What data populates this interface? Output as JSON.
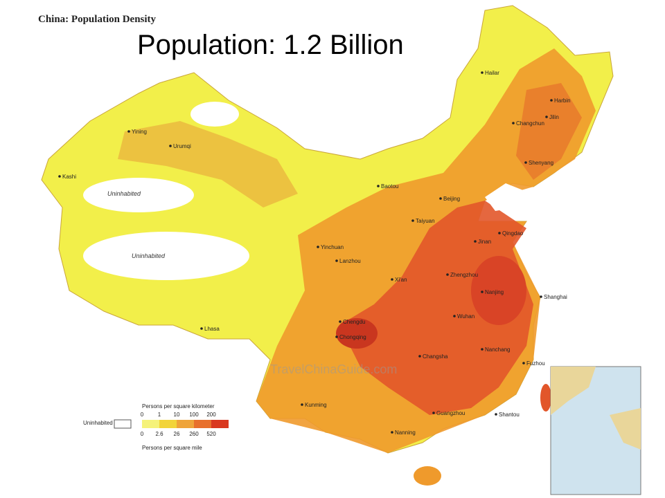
{
  "header": {
    "map_title": "China: Population Density",
    "slide_title": "Population: 1.2 Billion"
  },
  "regions": [
    "Uninhabited",
    "Uninhabited"
  ],
  "cities": [
    "Hailar",
    "Harbin",
    "Jilin",
    "Changchun",
    "Shenyang",
    "Yining",
    "Urumqi",
    "Kashi",
    "Baotou",
    "Beijing",
    "Taiyuan",
    "Qingdao",
    "Jinan",
    "Yinchuan",
    "Lanzhou",
    "Xi'an",
    "Zhengzhou",
    "Nanjing",
    "Shanghai",
    "Wuhan",
    "Chengdu",
    "Chongqing",
    "Lhasa",
    "Changsha",
    "Nanchang",
    "Fuzhou",
    "Kunming",
    "Guangzhou",
    "Shantou",
    "Nanning"
  ],
  "legend": {
    "top_caption": "Persons per square kilometer",
    "top_ticks": [
      "0",
      "1",
      "10",
      "100",
      "200"
    ],
    "bottom_ticks": [
      "0",
      "2.6",
      "26",
      "260",
      "520"
    ],
    "bottom_caption": "Persons per square mile",
    "uninhabited": "Uninhabited"
  },
  "watermark": "TravelChinaGuide.com"
}
